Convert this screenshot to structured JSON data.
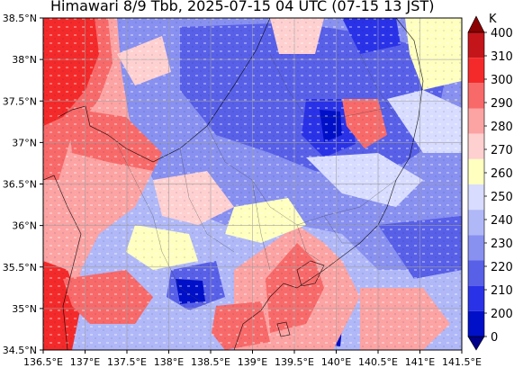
{
  "title": "Himawari 8/9 Tbb, 2025-07-15 04 UTC (07-15 13 JST)",
  "map": {
    "lon_range": [
      136.5,
      141.5
    ],
    "lat_range": [
      34.5,
      38.5
    ],
    "x_ticks": [
      "136.5°E",
      "137°E",
      "137.5°E",
      "138°E",
      "138.5°E",
      "139°E",
      "139.5°E",
      "140°E",
      "140.5°E",
      "141°E",
      "141.5°E"
    ],
    "y_ticks": [
      "38.5°N",
      "38°N",
      "37.5°N",
      "37°N",
      "36.5°N",
      "36°N",
      "35.5°N",
      "35°N",
      "34.5°N"
    ],
    "grid": true
  },
  "colorbar": {
    "unit": "K",
    "labels": [
      "400",
      "310",
      "300",
      "290",
      "280",
      "270",
      "260",
      "250",
      "240",
      "230",
      "220",
      "210",
      "200",
      "0"
    ],
    "colors": [
      "#8b0000",
      "#c4151b",
      "#f42a2a",
      "#f86a6a",
      "#fca3a3",
      "#ffd0d0",
      "#ffffc0",
      "#d8dcff",
      "#b0b8f8",
      "#8890f0",
      "#5860e8",
      "#2a32e8",
      "#0010c8",
      "#00008b"
    ]
  }
}
